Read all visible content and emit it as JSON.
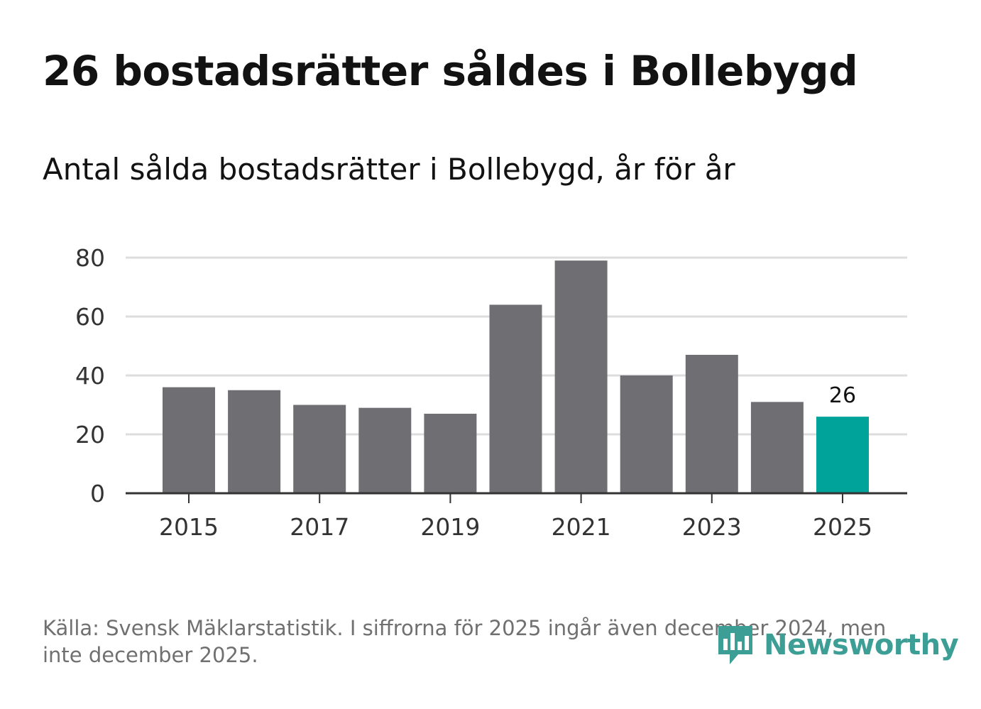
{
  "title": "26 bostadsrätter såldes i Bollebygd",
  "subtitle": "Antal sålda bostadsrätter i Bollebygd, år för år",
  "source": "Källa: Svensk Mäklarstatistik. I siffrorna för 2025 ingår även december 2024, men inte december 2025.",
  "brand": {
    "name": "Newsworthy",
    "color": "#3d9e96",
    "icon": "newsworthy-logo-icon"
  },
  "colors": {
    "bar": "#6f6e73",
    "highlight": "#00a39a",
    "grid": "#dddddd",
    "axis": "#333333"
  },
  "chart_data": {
    "type": "bar",
    "title": "Antal sålda bostadsrätter i Bollebygd, år för år",
    "categories": [
      "2015",
      "2016",
      "2017",
      "2018",
      "2019",
      "2020",
      "2021",
      "2022",
      "2023",
      "2024",
      "2025"
    ],
    "values": [
      36,
      35,
      30,
      29,
      27,
      64,
      79,
      40,
      47,
      31,
      26
    ],
    "highlight_index": 10,
    "data_labels": [
      {
        "index": 10,
        "text": "26"
      }
    ],
    "ylim": [
      0,
      80
    ],
    "yticks": [
      0,
      20,
      40,
      60,
      80
    ],
    "xtick_labels": [
      "2015",
      "2017",
      "2019",
      "2021",
      "2023",
      "2025"
    ],
    "grid": true,
    "legend": "none"
  }
}
